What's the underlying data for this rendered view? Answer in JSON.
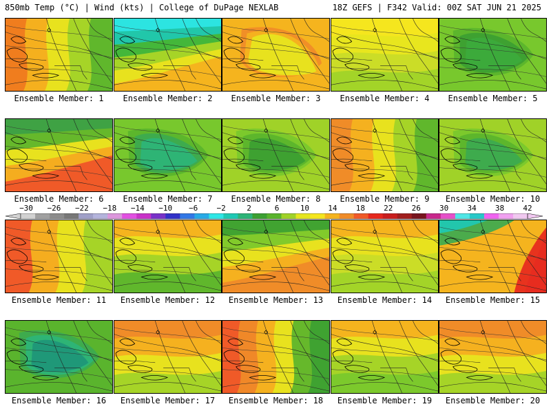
{
  "header": {
    "left": "850mb Temp (°C) | Wind (kts) | College of DuPage NEXLAB",
    "right": "18Z GEFS | F342 Valid: 00Z SAT JUN 21 2025"
  },
  "panels": [
    {
      "label": "Ensemble Member: 1",
      "fill": "warm-west",
      "colors": [
        "#f07d1e",
        "#f5b41e",
        "#e6e61e",
        "#a0d228",
        "#5ab42d"
      ]
    },
    {
      "label": "Ensemble Member: 2",
      "fill": "cool-north",
      "colors": [
        "#f5b41e",
        "#e6e61e",
        "#a0d228",
        "#3cb43c",
        "#1ec8b4",
        "#2ee6e6"
      ]
    },
    {
      "label": "Ensemble Member: 3",
      "fill": "warm-all",
      "colors": [
        "#f5b41e",
        "#f08c28",
        "#f5b41e",
        "#e6e61e"
      ]
    },
    {
      "label": "Ensemble Member: 4",
      "fill": "mild",
      "colors": [
        "#f5e61e",
        "#e6e61e",
        "#c8dc28",
        "#a0d228"
      ]
    },
    {
      "label": "Ensemble Member: 5",
      "fill": "cool-all",
      "colors": [
        "#78c82d",
        "#5ab42d",
        "#3ca032",
        "#3caa3c"
      ]
    },
    {
      "label": "Ensemble Member: 6",
      "fill": "warm-south",
      "colors": [
        "#f05a28",
        "#f5b41e",
        "#e6e61e",
        "#5ab42d",
        "#3ca046"
      ]
    },
    {
      "label": "Ensemble Member: 7",
      "fill": "cool-all",
      "colors": [
        "#78c82d",
        "#5ab42d",
        "#3caa50",
        "#2db478"
      ]
    },
    {
      "label": "Ensemble Member: 8",
      "fill": "cool-all",
      "colors": [
        "#a0d228",
        "#78c82d",
        "#5ab42d",
        "#3ca032"
      ]
    },
    {
      "label": "Ensemble Member: 9",
      "fill": "warm-west",
      "colors": [
        "#f08c28",
        "#f5b41e",
        "#e6e61e",
        "#a0d228",
        "#5ab42d"
      ]
    },
    {
      "label": "Ensemble Member: 10",
      "fill": "cool-all",
      "colors": [
        "#a0d228",
        "#78c82d",
        "#5ab42d",
        "#3caa50"
      ]
    },
    {
      "label": "Ensemble Member: 11",
      "fill": "warm-west",
      "colors": [
        "#f05a28",
        "#f5b41e",
        "#e6e61e",
        "#a0d228"
      ]
    },
    {
      "label": "Ensemble Member: 12",
      "fill": "mild",
      "colors": [
        "#f5b41e",
        "#e6e61e",
        "#a0d228",
        "#5ab42d"
      ]
    },
    {
      "label": "Ensemble Member: 13",
      "fill": "warm-south",
      "colors": [
        "#f08c28",
        "#f5b41e",
        "#e6e61e",
        "#78c82d",
        "#3ca032"
      ]
    },
    {
      "label": "Ensemble Member: 14",
      "fill": "mild",
      "colors": [
        "#f5b41e",
        "#e6e61e",
        "#c8dc28",
        "#a0d228"
      ]
    },
    {
      "label": "Ensemble Member: 15",
      "fill": "hot-east",
      "colors": [
        "#f5b41e",
        "#f08c28",
        "#f05a28",
        "#e6281e",
        "#3caa50",
        "#1ec8b4"
      ]
    },
    {
      "label": "Ensemble Member: 16",
      "fill": "cool-all",
      "colors": [
        "#5ab42d",
        "#3caa50",
        "#2db478",
        "#1e9678"
      ]
    },
    {
      "label": "Ensemble Member: 17",
      "fill": "mild",
      "colors": [
        "#f08c28",
        "#f5b41e",
        "#e6e61e",
        "#a0d228"
      ]
    },
    {
      "label": "Ensemble Member: 18",
      "fill": "hot-west",
      "colors": [
        "#f05a28",
        "#f08c28",
        "#f5b41e",
        "#e6e61e",
        "#5ab42d",
        "#3ca032"
      ]
    },
    {
      "label": "Ensemble Member: 19",
      "fill": "mild",
      "colors": [
        "#f5b41e",
        "#e6e61e",
        "#a0d228",
        "#78c82d"
      ]
    },
    {
      "label": "Ensemble Member: 20",
      "fill": "mild",
      "colors": [
        "#f08c28",
        "#f5b41e",
        "#e6e61e",
        "#a0d228"
      ]
    }
  ],
  "colorbar": {
    "ticks": [
      "−30",
      "−26",
      "−22",
      "−18",
      "−14",
      "−10",
      "−6",
      "−2",
      "2",
      "6",
      "10",
      "14",
      "18",
      "22",
      "26",
      "30",
      "34",
      "38",
      "42"
    ],
    "colors": [
      "#d2d2d2",
      "#a0a0a0",
      "#8c8c8c",
      "#787878",
      "#a0a0c8",
      "#b4b4dc",
      "#dc96dc",
      "#e150e1",
      "#c832c8",
      "#7832c8",
      "#3232c8",
      "#3278e6",
      "#28aae6",
      "#2ee6e6",
      "#1ec8b4",
      "#2db478",
      "#3ca032",
      "#5ab42d",
      "#a0d228",
      "#e6e61e",
      "#f5e61e",
      "#f5b41e",
      "#f08c28",
      "#f05a28",
      "#e6281e",
      "#c81e1e",
      "#a01e1e",
      "#78141e",
      "#c8288c",
      "#e650c8",
      "#50e6e6",
      "#28c8c8",
      "#f064f0",
      "#f0a0f0",
      "#f0c8f0"
    ]
  }
}
